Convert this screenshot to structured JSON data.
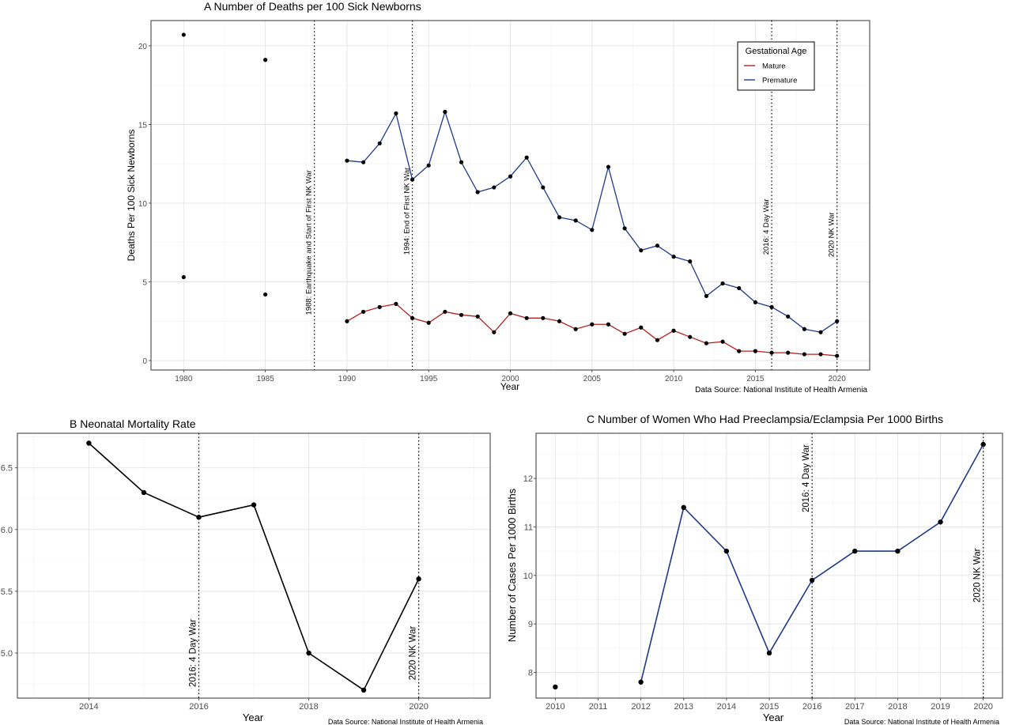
{
  "chart_data": [
    {
      "panel": "A",
      "type": "line",
      "title": "A  Number of Deaths per 100 Sick Newborns",
      "xlabel": "Year",
      "ylabel": "Deaths Per 100 Sick Newborns",
      "source": "Data Source: National Institute of Health Armenia",
      "xlim": [
        1978,
        2022
      ],
      "ylim": [
        -0.6,
        21.6
      ],
      "xticks": [
        1980,
        1985,
        1990,
        1995,
        2000,
        2005,
        2010,
        2015,
        2020
      ],
      "yticks": [
        0,
        5,
        10,
        15,
        20
      ],
      "grid": true,
      "legend": {
        "title": "Gestational Age",
        "position": "top-right"
      },
      "series": [
        {
          "name": "Mature",
          "color": "#b22222",
          "x": [
            1980,
            1985,
            1990,
            1991,
            1992,
            1993,
            1994,
            1995,
            1996,
            1997,
            1998,
            1999,
            2000,
            2001,
            2002,
            2003,
            2004,
            2005,
            2006,
            2007,
            2008,
            2009,
            2010,
            2011,
            2012,
            2013,
            2014,
            2015,
            2016,
            2017,
            2018,
            2019,
            2020
          ],
          "y": [
            5.3,
            4.2,
            2.5,
            3.1,
            3.4,
            3.6,
            2.7,
            2.4,
            3.1,
            2.9,
            2.8,
            1.8,
            3.0,
            2.7,
            2.7,
            2.5,
            2.0,
            2.3,
            2.3,
            1.7,
            2.1,
            1.3,
            1.9,
            1.5,
            1.1,
            1.2,
            0.6,
            0.6,
            0.5,
            0.5,
            0.4,
            0.4,
            0.3
          ],
          "connected_from": 1990
        },
        {
          "name": "Premature",
          "color": "#1f3a8a",
          "x": [
            1980,
            1985,
            1990,
            1991,
            1992,
            1993,
            1994,
            1995,
            1996,
            1997,
            1998,
            1999,
            2000,
            2001,
            2002,
            2003,
            2004,
            2005,
            2006,
            2007,
            2008,
            2009,
            2010,
            2011,
            2012,
            2013,
            2014,
            2015,
            2016,
            2017,
            2018,
            2019,
            2020
          ],
          "y": [
            20.7,
            19.1,
            12.7,
            12.6,
            13.8,
            15.7,
            11.5,
            12.4,
            15.8,
            12.6,
            10.7,
            11.0,
            11.7,
            12.9,
            11.0,
            9.1,
            8.9,
            8.3,
            12.3,
            8.4,
            7.0,
            7.3,
            6.6,
            6.3,
            4.1,
            4.9,
            4.6,
            3.7,
            3.4,
            2.8,
            2.0,
            1.8,
            2.5
          ],
          "connected_from": 1990
        }
      ],
      "vlines": [
        {
          "x": 1988,
          "label": "1988: Earthquake and Start of First NK War",
          "label_y": 7.5
        },
        {
          "x": 1994,
          "label": "1994: End of First NK War",
          "label_y": 9.5
        },
        {
          "x": 2016,
          "label": "2016: 4 Day War",
          "label_y": 8.5
        },
        {
          "x": 2020,
          "label": "2020 NK War",
          "label_y": 8.0
        }
      ]
    },
    {
      "panel": "B",
      "type": "line",
      "title": "B  Neonatal Mortality Rate",
      "xlabel": "Year",
      "ylabel": "",
      "source": "Data Source:  National Institute of Health Armenia",
      "xlim": [
        2012.7,
        2021.3
      ],
      "ylim": [
        4.635,
        6.78
      ],
      "xticks": [
        2014,
        2016,
        2018,
        2020
      ],
      "yticks": [
        5.0,
        5.5,
        6.0,
        6.5
      ],
      "ytick_labels": [
        "5.0",
        "5.5",
        "6.0",
        "6.5"
      ],
      "grid": true,
      "series": [
        {
          "color": "#000000",
          "x": [
            2014,
            2015,
            2016,
            2017,
            2018,
            2019,
            2020
          ],
          "y": [
            6.7,
            6.3,
            6.1,
            6.2,
            5.0,
            4.7,
            5.6
          ]
        }
      ],
      "vlines": [
        {
          "x": 2016,
          "label": "2016: 4 Day War",
          "label_y": 5.0
        },
        {
          "x": 2020,
          "label": "2020 NK War",
          "label_y": 5.0
        }
      ]
    },
    {
      "panel": "C",
      "type": "line",
      "title": "C  Number of Women Who Had Preeclampsia/Eclampsia Per 1000 Births",
      "xlabel": "Year",
      "ylabel": "Number of Cases Per 1000 Births",
      "source": "Data Source:  National Institute of Health Armenia",
      "xlim": [
        2009.55,
        2020.45
      ],
      "ylim": [
        7.47,
        12.93
      ],
      "xticks": [
        2010,
        2011,
        2012,
        2013,
        2014,
        2015,
        2016,
        2017,
        2018,
        2019,
        2020
      ],
      "yticks": [
        8,
        9,
        10,
        11,
        12
      ],
      "grid": true,
      "series": [
        {
          "color": "#1f3a8a",
          "x": [
            2010,
            2012,
            2013,
            2014,
            2015,
            2016,
            2017,
            2018,
            2019,
            2020
          ],
          "y": [
            7.7,
            7.8,
            11.4,
            10.5,
            8.4,
            9.9,
            10.5,
            10.5,
            11.1,
            12.7
          ],
          "connected_from": 2012
        }
      ],
      "vlines": [
        {
          "x": 2016,
          "label": "2016: 4 Day War",
          "label_y": 12.0
        },
        {
          "x": 2020,
          "label": "2020 NK War",
          "label_y": 10.0
        }
      ]
    }
  ]
}
